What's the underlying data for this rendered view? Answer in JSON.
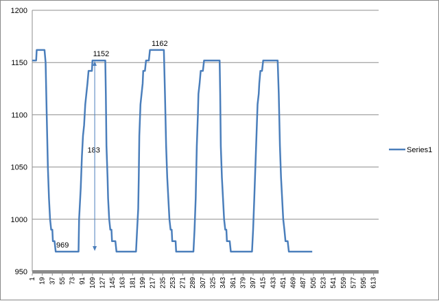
{
  "chart_data": {
    "type": "line",
    "title": "",
    "xlabel": "",
    "ylabel": "",
    "ylim": [
      950,
      1200
    ],
    "y_ticks": [
      950,
      1000,
      1050,
      1100,
      1150,
      1200
    ],
    "x_range": [
      1,
      622
    ],
    "x_tick_labels": [
      "1",
      "19",
      "37",
      "55",
      "73",
      "91",
      "109",
      "127",
      "145",
      "163",
      "181",
      "199",
      "217",
      "235",
      "253",
      "271",
      "289",
      "307",
      "325",
      "343",
      "361",
      "379",
      "397",
      "415",
      "433",
      "451",
      "469",
      "487",
      "505",
      "523",
      "541",
      "559",
      "577",
      "595",
      "613"
    ],
    "grid": "horizontal",
    "legend_position": "right",
    "series": [
      {
        "name": "Series1",
        "color": "#4a7ebb",
        "points": [
          [
            1,
            1152
          ],
          [
            8,
            1152
          ],
          [
            9,
            1162
          ],
          [
            23,
            1162
          ],
          [
            25,
            1150
          ],
          [
            27,
            1100
          ],
          [
            29,
            1050
          ],
          [
            31,
            1020
          ],
          [
            33,
            1000
          ],
          [
            35,
            990
          ],
          [
            37,
            990
          ],
          [
            38,
            979
          ],
          [
            41,
            979
          ],
          [
            43,
            969
          ],
          [
            84,
            969
          ],
          [
            85,
            1000
          ],
          [
            86,
            1010
          ],
          [
            88,
            1030
          ],
          [
            90,
            1060
          ],
          [
            92,
            1080
          ],
          [
            94,
            1090
          ],
          [
            96,
            1110
          ],
          [
            98,
            1120
          ],
          [
            100,
            1130
          ],
          [
            102,
            1142
          ],
          [
            108,
            1142
          ],
          [
            109,
            1152
          ],
          [
            132,
            1152
          ],
          [
            133,
            1120
          ],
          [
            134,
            1070
          ],
          [
            136,
            1040
          ],
          [
            137,
            1020
          ],
          [
            139,
            1000
          ],
          [
            141,
            990
          ],
          [
            143,
            990
          ],
          [
            144,
            979
          ],
          [
            150,
            979
          ],
          [
            152,
            969
          ],
          [
            187,
            969
          ],
          [
            189,
            990
          ],
          [
            191,
            1010
          ],
          [
            192,
            1040
          ],
          [
            193,
            1080
          ],
          [
            195,
            1110
          ],
          [
            197,
            1120
          ],
          [
            199,
            1130
          ],
          [
            200,
            1142
          ],
          [
            203,
            1142
          ],
          [
            205,
            1152
          ],
          [
            210,
            1152
          ],
          [
            212,
            1162
          ],
          [
            237,
            1162
          ],
          [
            239,
            1120
          ],
          [
            241,
            1070
          ],
          [
            243,
            1040
          ],
          [
            245,
            1020
          ],
          [
            247,
            1000
          ],
          [
            249,
            990
          ],
          [
            251,
            990
          ],
          [
            252,
            979
          ],
          [
            258,
            979
          ],
          [
            259,
            969
          ],
          [
            290,
            969
          ],
          [
            292,
            990
          ],
          [
            294,
            1020
          ],
          [
            296,
            1070
          ],
          [
            298,
            1100
          ],
          [
            299,
            1120
          ],
          [
            301,
            1130
          ],
          [
            303,
            1142
          ],
          [
            307,
            1142
          ],
          [
            309,
            1152
          ],
          [
            337,
            1152
          ],
          [
            338,
            1120
          ],
          [
            339,
            1070
          ],
          [
            341,
            1040
          ],
          [
            343,
            1020
          ],
          [
            345,
            1000
          ],
          [
            347,
            990
          ],
          [
            349,
            990
          ],
          [
            350,
            979
          ],
          [
            355,
            979
          ],
          [
            357,
            969
          ],
          [
            395,
            969
          ],
          [
            397,
            990
          ],
          [
            399,
            1020
          ],
          [
            401,
            1050
          ],
          [
            403,
            1080
          ],
          [
            405,
            1110
          ],
          [
            407,
            1120
          ],
          [
            408,
            1130
          ],
          [
            410,
            1142
          ],
          [
            413,
            1142
          ],
          [
            415,
            1152
          ],
          [
            441,
            1152
          ],
          [
            443,
            1120
          ],
          [
            445,
            1070
          ],
          [
            447,
            1040
          ],
          [
            449,
            1020
          ],
          [
            451,
            1000
          ],
          [
            453,
            990
          ],
          [
            455,
            979
          ],
          [
            459,
            979
          ],
          [
            461,
            969
          ],
          [
            502,
            969
          ],
          [
            503,
            969
          ]
        ]
      }
    ],
    "annotations": [
      {
        "text": "1152",
        "x": 110,
        "y": 1156
      },
      {
        "text": "1162",
        "x": 215,
        "y": 1166
      },
      {
        "text": "969",
        "x": 44,
        "y": 973
      },
      {
        "text": "183",
        "x": 100,
        "y": 1064
      },
      {
        "arrow_x": 113,
        "from": 1152,
        "to": 969
      }
    ]
  }
}
